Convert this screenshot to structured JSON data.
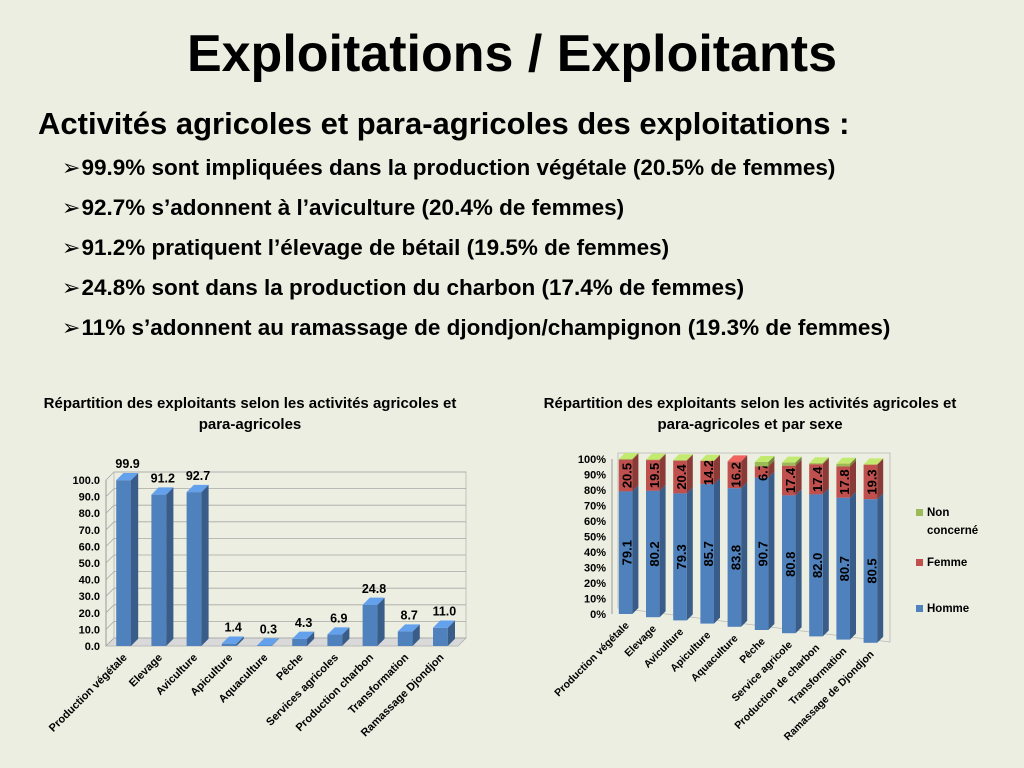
{
  "slide": {
    "title": "Exploitations / Exploitants",
    "subtitle": "Activités agricoles et para-agricoles des exploitations :",
    "bullets": [
      "99.9% sont impliquées dans la production  végétale (20.5% de femmes)",
      "92.7% s’adonnent à l’aviculture (20.4% de femmes)",
      "91.2% pratiquent l’élevage de bétail  (19.5% de femmes)",
      "24.8% sont dans la production du charbon (17.4% de femmes)",
      "11% s’adonnent au ramassage de djondjon/champignon (19.3% de femmes)"
    ],
    "bullet_marker": "➢"
  },
  "chart_data": [
    {
      "type": "bar",
      "title": "Répartition des exploitants selon les activités agricoles et para-agricoles",
      "categories": [
        "Production végétale",
        "Elevage",
        "Aviculture",
        "Apiculture",
        "Aquaculture",
        "Pêche",
        "Services agricoles",
        "Production charbon",
        "Transformation",
        "Ramassage Djondjon"
      ],
      "values": [
        99.9,
        91.2,
        92.7,
        1.4,
        0.3,
        4.3,
        6.9,
        24.8,
        8.7,
        11.0
      ],
      "value_labels": [
        "99.9",
        "91.2",
        "92.7",
        "1.4",
        "0.3",
        "4.3",
        "6.9",
        "24.8",
        "8.7",
        "11.0"
      ],
      "yticks": [
        "0.0",
        "10.0",
        "20.0",
        "30.0",
        "40.0",
        "50.0",
        "60.0",
        "70.0",
        "80.0",
        "90.0",
        "100.0"
      ],
      "ylim": [
        0,
        100
      ],
      "grid": true,
      "bar_color": "#4f81bd"
    },
    {
      "type": "bar",
      "stacked": true,
      "percent": true,
      "title": "Répartition des exploitants selon les activités agricoles et para-agricoles et par sexe",
      "categories": [
        "Production végétale",
        "Elevage",
        "Aviculture",
        "Apiculture",
        "Aquaculture",
        "Pêche",
        "Service agricole",
        "Production de charbon",
        "Transformation",
        "Ramassage de Djondjon"
      ],
      "series": [
        {
          "name": "Homme",
          "color": "#4f81bd",
          "values": [
            79.1,
            80.2,
            79.3,
            85.7,
            83.8,
            90.7,
            80.8,
            82.0,
            80.7,
            80.5
          ],
          "labels": [
            "79.1",
            "80.2",
            "79.3",
            "85.7",
            "83.8",
            "90.7",
            "80.8",
            "82.0",
            "80.7",
            "80.5"
          ]
        },
        {
          "name": "Femme",
          "color": "#c0504d",
          "values": [
            20.5,
            19.5,
            20.4,
            14.2,
            16.2,
            6.7,
            17.4,
            17.4,
            17.8,
            19.3
          ],
          "labels": [
            "20.5",
            "19.5",
            "20.4",
            "14.2",
            "16.2",
            "6.7",
            "17.4",
            "17.4",
            "17.8",
            "19.3"
          ]
        },
        {
          "name": "Non concerné",
          "color": "#9bbb59",
          "values": [
            0.4,
            0.3,
            0.3,
            0.1,
            0.0,
            2.6,
            1.8,
            0.6,
            1.5,
            0.2
          ]
        }
      ],
      "legend_entries": [
        {
          "label_lines": [
            "Non",
            "concerné"
          ],
          "color": "#9bbb59"
        },
        {
          "label_lines": [
            "Femme"
          ],
          "color": "#c0504d"
        },
        {
          "label_lines": [
            "Homme"
          ],
          "color": "#4f81bd"
        }
      ],
      "yticks": [
        "0%",
        "10%",
        "20%",
        "30%",
        "40%",
        "50%",
        "60%",
        "70%",
        "80%",
        "90%",
        "100%"
      ],
      "ylim": [
        0,
        100
      ],
      "legend": "right"
    }
  ]
}
